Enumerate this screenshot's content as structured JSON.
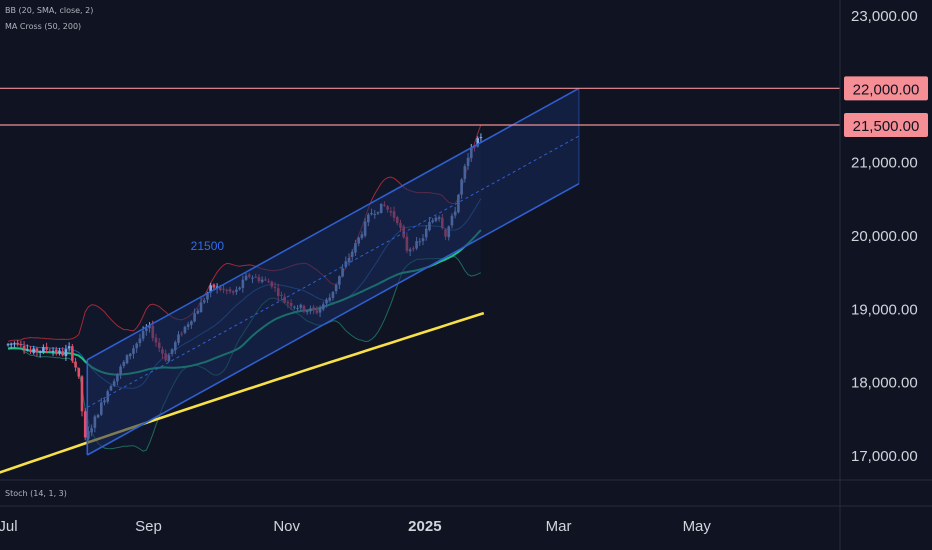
{
  "indicators": {
    "bb": "BB (20, SMA, close, 2)",
    "ma_cross": "MA Cross (50, 200)",
    "stoch": "Stoch (14, 1, 3)"
  },
  "colors": {
    "background": "#0f1322",
    "up": "#84a9ea",
    "down": "#e34d68",
    "bb_upper": "#a12a38",
    "bb_lower": "#1d6b5c",
    "bb_basis": "#1f5b9a",
    "ma_fast": "#1fbf84",
    "ma_slow": "#f8e04a",
    "channel": "#2f5fcf",
    "channel_fill": "#18295a",
    "hline": "#f08f94",
    "badge_bg": "#f58f95",
    "annotation": "#2f6cf2"
  },
  "chart_data": {
    "type": "candlestick",
    "x_ticks": [
      "Jul",
      "Sep",
      "Nov",
      "2025",
      "Mar",
      "May"
    ],
    "y_ticks": [
      "23,000.00",
      "21,000.00",
      "20,000.00",
      "19,000.00",
      "18,000.00",
      "17,000.00"
    ],
    "ylim": [
      16800,
      23300
    ],
    "horizontal_lines": [
      {
        "value": 22000,
        "label": "22,000.00"
      },
      {
        "value": 21500,
        "label": "21,500.00"
      }
    ],
    "annotation": {
      "text": "21500",
      "x": "2024-09-27",
      "y": 19850
    },
    "channel": {
      "start": "2024-08-05",
      "end": "2025-03-10",
      "upper": [
        18300,
        22000
      ],
      "lower": [
        17000,
        20700
      ]
    },
    "series": [
      {
        "name": "BB (20, SMA, close, 2)",
        "type": "bands"
      },
      {
        "name": "MA Cross (50, 200)",
        "type": "moving_averages"
      }
    ]
  }
}
